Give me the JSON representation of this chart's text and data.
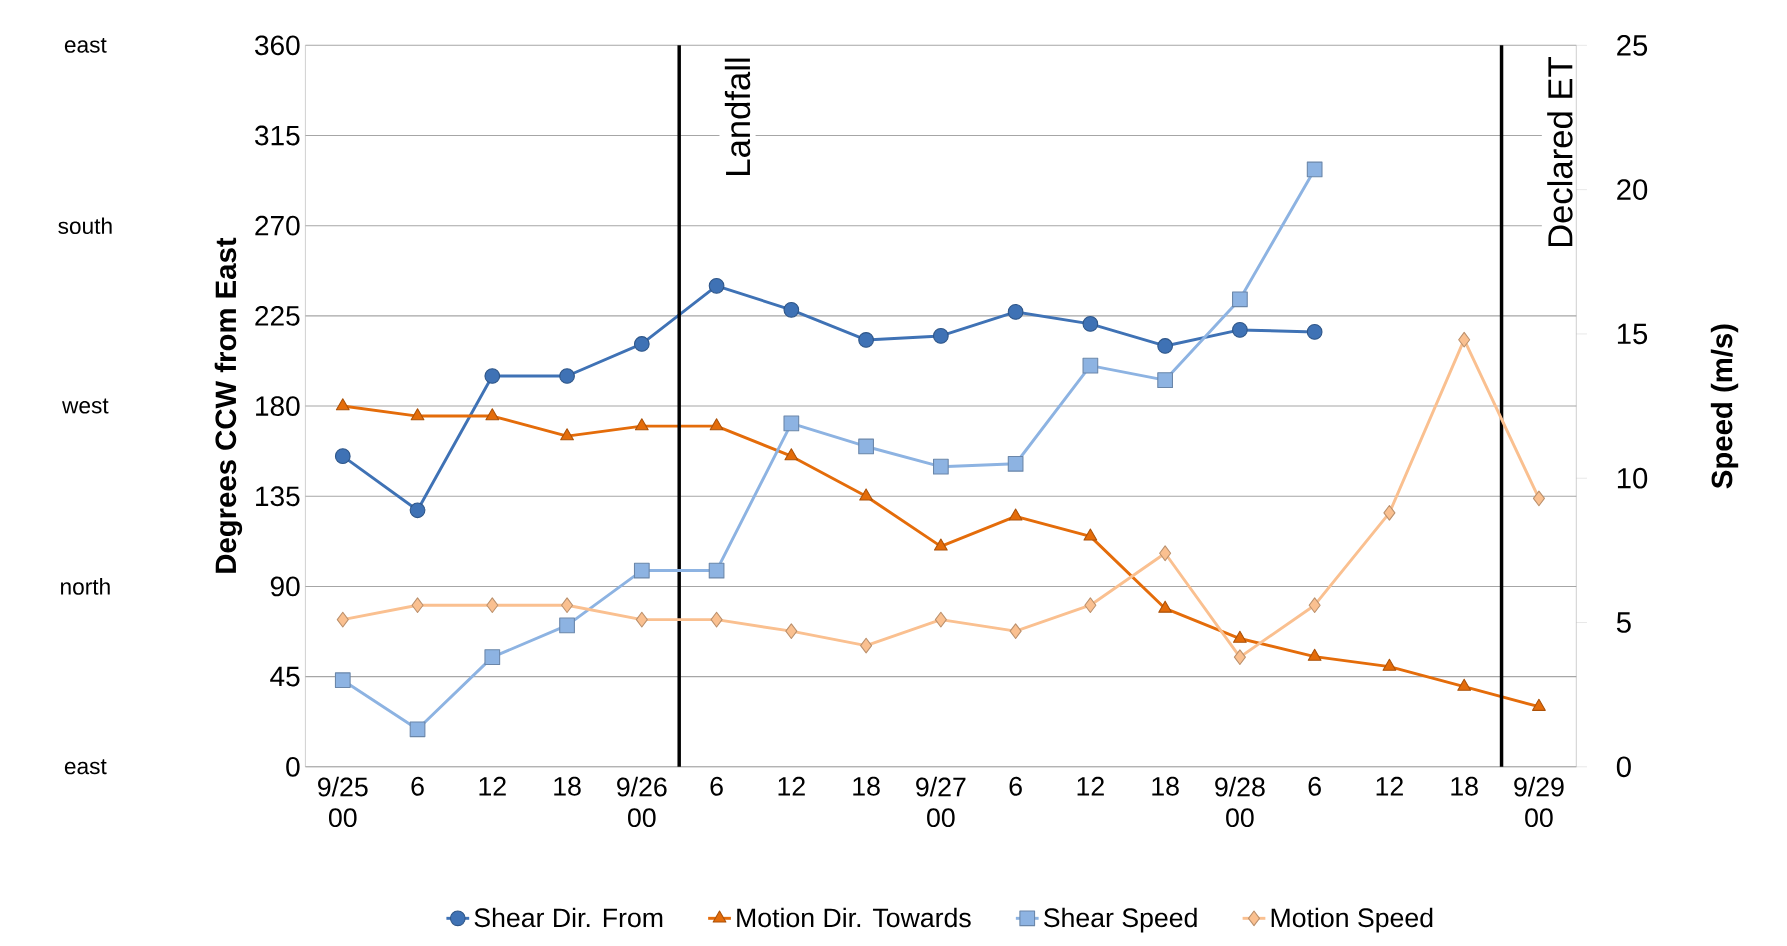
{
  "chart_data": {
    "type": "line",
    "ylabel": "Degrees CCW from East",
    "y2label": "Speed (m/s)",
    "categories": [
      "9/25 00",
      "6",
      "12",
      "18",
      "9/26 00",
      "6",
      "12",
      "18",
      "9/27 00",
      "6",
      "12",
      "18",
      "9/28 00",
      "6",
      "12",
      "18",
      "9/29 00"
    ],
    "ylim": [
      0,
      360
    ],
    "yticks": [
      0,
      45,
      90,
      135,
      180,
      225,
      270,
      315,
      360
    ],
    "y2lim": [
      0,
      25
    ],
    "y2ticks": [
      0,
      5,
      10,
      15,
      20,
      25
    ],
    "grid": "y",
    "legend": "bottom",
    "series": [
      {
        "name": "Shear Dir. From",
        "color": "#3f72b5",
        "marker": "circle",
        "values": [
          155,
          128,
          195,
          195,
          211,
          240,
          228,
          213,
          215,
          227,
          221,
          210,
          218,
          217,
          null,
          null,
          null
        ]
      },
      {
        "name": "Motion Dir. Towards",
        "color": "#e46c0a",
        "marker": "triangle",
        "values": [
          180,
          175,
          175,
          165,
          170,
          170,
          155,
          135,
          110,
          125,
          115,
          79,
          64,
          55,
          50,
          40,
          30
        ]
      },
      {
        "name": "Shear Speed",
        "color": "#8db3e2",
        "marker": "square",
        "axis": "y2",
        "values": [
          3.0,
          1.3,
          3.8,
          4.9,
          6.8,
          6.8,
          11.9,
          11.1,
          10.4,
          10.5,
          13.9,
          13.4,
          16.2,
          20.7,
          null,
          null,
          null
        ]
      },
      {
        "name": "Motion Speed",
        "color": "#fac090",
        "marker": "diamond",
        "axis": "y2",
        "values": [
          5.1,
          5.6,
          5.6,
          5.6,
          5.1,
          5.1,
          4.7,
          4.2,
          5.1,
          4.7,
          5.6,
          7.4,
          3.8,
          5.6,
          8.8,
          14.8,
          9.3
        ]
      }
    ],
    "annotations": [
      "east",
      "south",
      "west",
      "north",
      "east",
      "Landfall",
      "Declared ET"
    ]
  }
}
